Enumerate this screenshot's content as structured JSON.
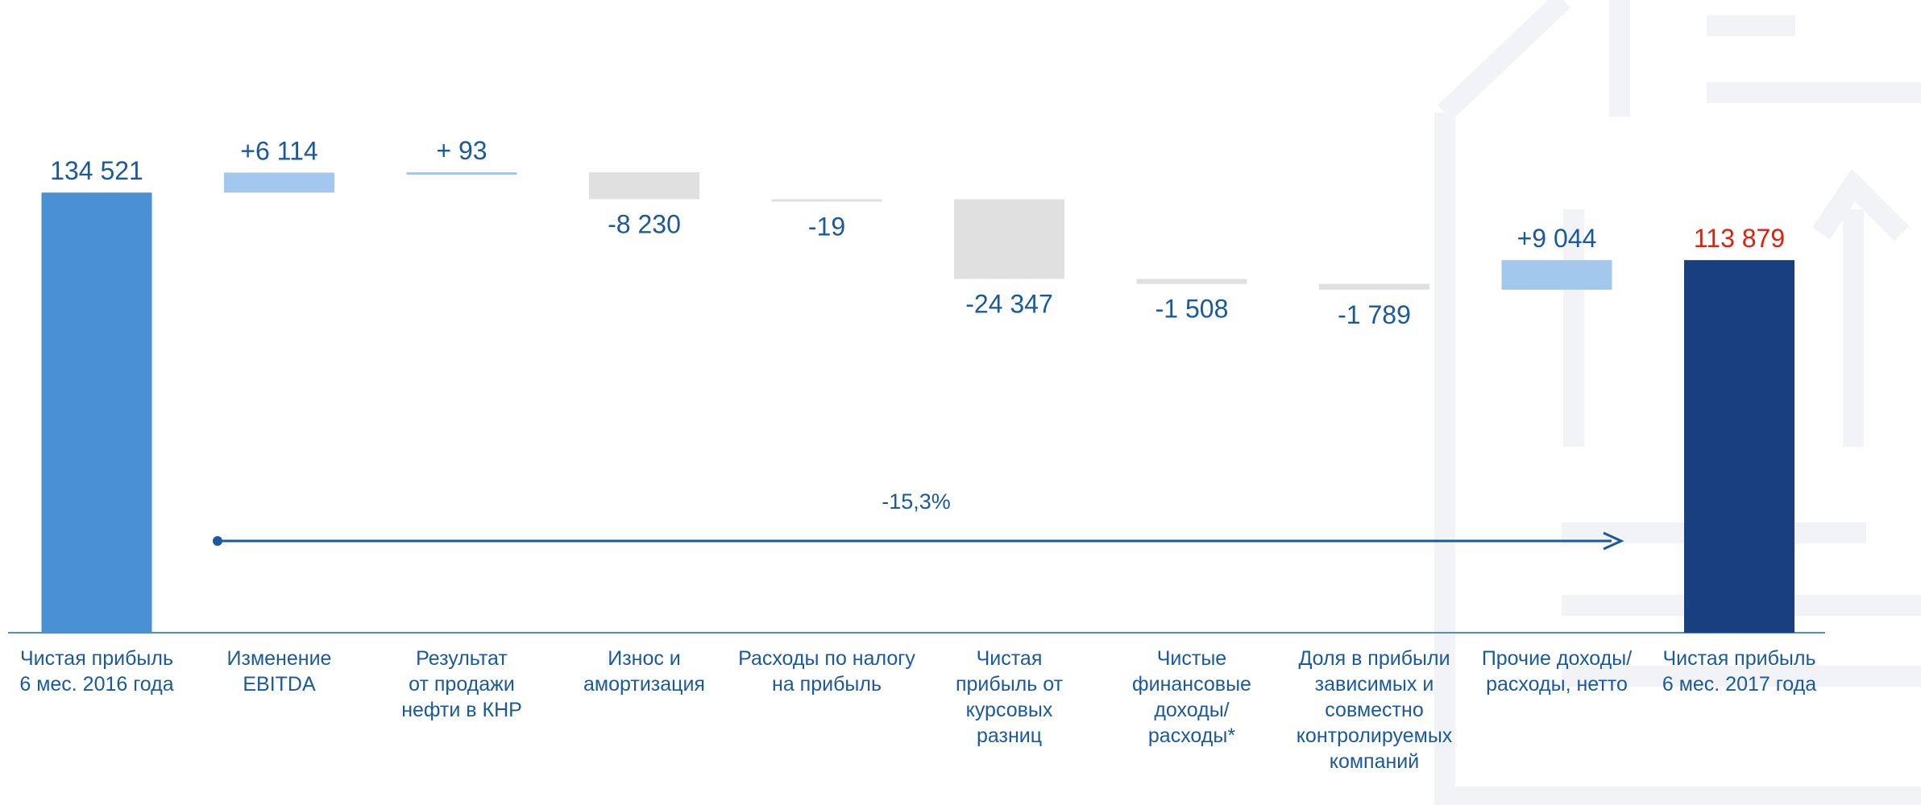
{
  "chart_data": {
    "type": "waterfall",
    "categories": [
      "Чистая прибыль\n6 мес. 2016 года",
      "Изменение\nEBITDA",
      "Результат\nот продажи\nнефти в КНР",
      "Износ и\nамортизация",
      "Расходы по налогу\nна прибыль",
      "Чистая\nприбыль от\nкурсовых\nразниц",
      "Чистые\nфинансовые\nдоходы/\nрасходы*",
      "Доля в прибыли\nзависимых и\nсовместно\nконтролируемых\nкомпаний",
      "Прочие доходы/\nрасходы, нетто",
      "Чистая прибыль\n6 мес. 2017 года"
    ],
    "values": [
      134521,
      6114,
      93,
      -8230,
      -19,
      -24347,
      -1508,
      -1789,
      9044,
      113879
    ],
    "value_labels": [
      "134 521",
      "+6 114",
      "+ 93",
      "-8 230",
      "-19",
      "-24 347",
      "-1 508",
      "-1 789",
      "+9 044",
      "113 879"
    ],
    "is_total": [
      true,
      false,
      false,
      false,
      false,
      false,
      false,
      false,
      false,
      true
    ],
    "colors": [
      "#4a90d4",
      "#a3c8ee",
      "#a3c8ee",
      "#e0e0e0",
      "#e0e0e0",
      "#e0e0e0",
      "#e0e0e0",
      "#e0e0e0",
      "#a3c8ee",
      "#1a3f80"
    ],
    "label_colors": [
      "#1a5a9a",
      "#1a5a9a",
      "#1a5a9a",
      "#1a5a9a",
      "#1a5a9a",
      "#1a5a9a",
      "#1a5a9a",
      "#1a5a9a",
      "#1a5a9a",
      "#d9230f"
    ],
    "annotation": "-15,3%"
  }
}
